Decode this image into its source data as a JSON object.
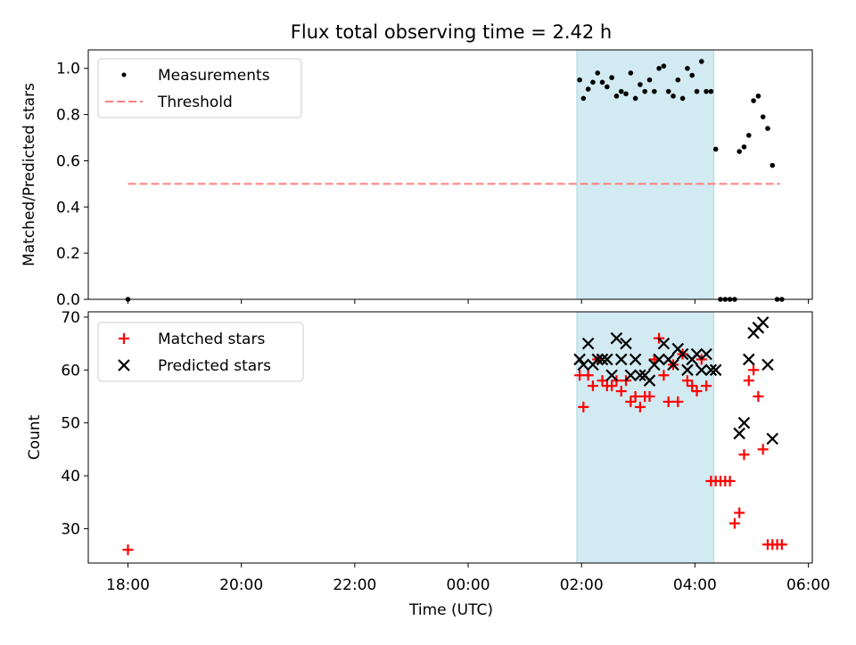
{
  "title": "Flux total observing time = 2.42 h",
  "colors": {
    "span": "#add8e6",
    "measurement": "#000000",
    "threshold": "#ff7f7f",
    "matched": "#ff0000",
    "predicted": "#000000"
  },
  "chart_data": [
    {
      "type": "scatter",
      "xlabel": "",
      "ylabel": "Matched/Predicted stars",
      "ylim": [
        0,
        1.08
      ],
      "yticks": [
        "0.0",
        "0.2",
        "0.4",
        "0.6",
        "0.8",
        "1.0"
      ],
      "xlim_hours": [
        17.3,
        30.07
      ],
      "shaded_span": [
        "01:55",
        "04:20"
      ],
      "legend": {
        "placement": "upper-left",
        "entries": [
          "Measurements",
          "Threshold"
        ]
      },
      "threshold": {
        "name": "Threshold",
        "value": 0.5,
        "x": [
          "18:00",
          "05:30"
        ]
      },
      "series": [
        {
          "name": "Measurements",
          "x": [
            "18:00",
            "01:58",
            "02:02",
            "02:07",
            "02:12",
            "02:17",
            "02:22",
            "02:27",
            "02:32",
            "02:37",
            "02:42",
            "02:47",
            "02:52",
            "02:57",
            "03:02",
            "03:07",
            "03:12",
            "03:17",
            "03:22",
            "03:27",
            "03:32",
            "03:37",
            "03:42",
            "03:47",
            "03:52",
            "03:57",
            "04:02",
            "04:07",
            "04:12",
            "04:17",
            "04:22",
            "04:27",
            "04:32",
            "04:37",
            "04:42",
            "04:47",
            "04:52",
            "04:57",
            "05:02",
            "05:07",
            "05:12",
            "05:17",
            "05:22",
            "05:27",
            "05:32"
          ],
          "y": [
            0.0,
            0.95,
            0.87,
            0.91,
            0.94,
            0.98,
            0.94,
            0.92,
            0.96,
            0.88,
            0.9,
            0.89,
            0.98,
            0.87,
            0.93,
            0.9,
            0.95,
            0.9,
            1.0,
            1.01,
            0.9,
            0.88,
            0.95,
            0.87,
            1.0,
            0.97,
            0.9,
            1.03,
            0.9,
            0.9,
            0.65,
            0.0,
            0.0,
            0.0,
            0.0,
            0.64,
            0.66,
            0.71,
            0.86,
            0.88,
            0.79,
            0.74,
            0.58,
            0.0,
            0.0
          ]
        }
      ]
    },
    {
      "type": "scatter",
      "xlabel": "Time (UTC)",
      "ylabel": "Count",
      "ylim": [
        23.5,
        71
      ],
      "yticks": [
        "30",
        "40",
        "50",
        "60",
        "70"
      ],
      "xticks": [
        "18:00",
        "20:00",
        "22:00",
        "00:00",
        "02:00",
        "04:00",
        "06:00"
      ],
      "xlim_hours": [
        17.3,
        30.07
      ],
      "shaded_span": [
        "01:55",
        "04:20"
      ],
      "legend": {
        "placement": "upper-left",
        "entries": [
          "Matched stars",
          "Predicted stars"
        ]
      },
      "series": [
        {
          "name": "Matched stars",
          "x": [
            "18:00",
            "01:58",
            "02:02",
            "02:07",
            "02:12",
            "02:17",
            "02:22",
            "02:27",
            "02:32",
            "02:37",
            "02:42",
            "02:47",
            "02:52",
            "02:57",
            "03:02",
            "03:07",
            "03:12",
            "03:17",
            "03:22",
            "03:27",
            "03:32",
            "03:37",
            "03:42",
            "03:47",
            "03:52",
            "03:57",
            "04:02",
            "04:07",
            "04:12",
            "04:17",
            "04:22",
            "04:27",
            "04:32",
            "04:37",
            "04:42",
            "04:47",
            "04:52",
            "04:57",
            "05:02",
            "05:07",
            "05:12",
            "05:17",
            "05:22",
            "05:27",
            "05:32"
          ],
          "y": [
            26,
            59,
            53,
            59,
            57,
            62,
            58,
            57,
            57,
            58,
            56,
            58,
            54,
            55,
            53,
            55,
            55,
            62,
            66,
            59,
            54,
            61,
            54,
            63,
            58,
            57,
            56,
            62,
            57,
            39,
            39,
            39,
            39,
            39,
            31,
            33,
            44,
            58,
            60,
            55,
            45,
            27,
            27,
            27,
            27
          ]
        },
        {
          "name": "Predicted stars",
          "x": [
            "01:58",
            "02:02",
            "02:07",
            "02:12",
            "02:17",
            "02:22",
            "02:27",
            "02:32",
            "02:37",
            "02:42",
            "02:47",
            "02:52",
            "02:57",
            "03:02",
            "03:07",
            "03:12",
            "03:17",
            "03:22",
            "03:27",
            "03:32",
            "03:37",
            "03:42",
            "03:47",
            "03:52",
            "03:57",
            "04:02",
            "04:07",
            "04:12",
            "04:17",
            "04:22",
            "04:47",
            "04:52",
            "04:57",
            "05:02",
            "05:07",
            "05:12",
            "05:17",
            "05:22"
          ],
          "y": [
            62,
            61,
            65,
            61,
            62,
            62,
            62,
            59,
            66,
            62,
            65,
            59,
            62,
            59,
            59,
            58,
            61,
            62,
            65,
            62,
            61,
            64,
            63,
            60,
            62,
            63,
            60,
            63,
            60,
            60,
            48,
            50,
            62,
            67,
            68,
            69,
            61,
            47
          ]
        }
      ]
    }
  ]
}
